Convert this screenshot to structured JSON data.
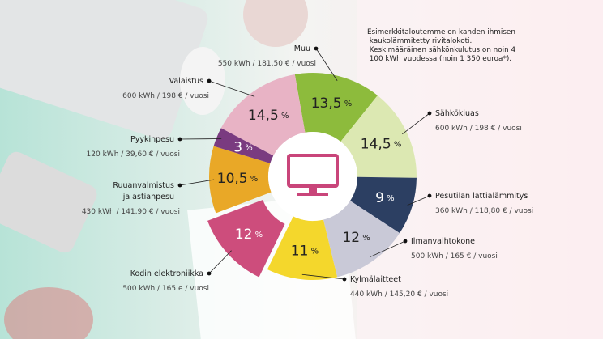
{
  "chart_data": {
    "type": "pie",
    "note": "Esimerkkitaloutemme on kahden ihmisen kaukolämmitetty rivitalokoti. Keskimääräinen sähkönkulutus on noin 4 100 kWh vuodessa (noin 1 350 euroa*).",
    "categories": [
      "Muu",
      "Sähkökiuas",
      "Pesutilan lattialämmitys",
      "Ilmanvaihtokone",
      "Kylmälaitteet",
      "Kodin elektroniikka",
      "Ruuanvalmistus ja astianpesu",
      "Pyykinpesu",
      "Valaistus"
    ],
    "values": [
      13.5,
      14.5,
      9,
      12,
      11,
      12,
      10.5,
      3,
      14.5
    ],
    "value_labels": [
      "13,5 %",
      "14,5 %",
      "9 %",
      "12 %",
      "11 %",
      "12 %",
      "10,5 %",
      "3 %",
      "14,5 %"
    ],
    "details": [
      "550 kWh / 181,50 € / vuosi",
      "600 kWh / 198 € / vuosi",
      "360 kWh / 118,80 € / vuosi",
      "500 kWh / 165 € / vuosi",
      "440 kWh / 145,20 € / vuosi",
      "500 kWh / 165 e / vuosi",
      "430 kWh / 141,90 € / vuosi",
      "120 kWh / 39,60 € / vuosi",
      "600 kWh / 198 € / vuosi"
    ],
    "colors": [
      "#8dbb3c",
      "#dce8b2",
      "#2c3f62",
      "#c9c9d7",
      "#f4d72c",
      "#cd4d7c",
      "#e9a827",
      "#7a3b80",
      "#e8b3c5"
    ],
    "exploded_index": 5
  }
}
